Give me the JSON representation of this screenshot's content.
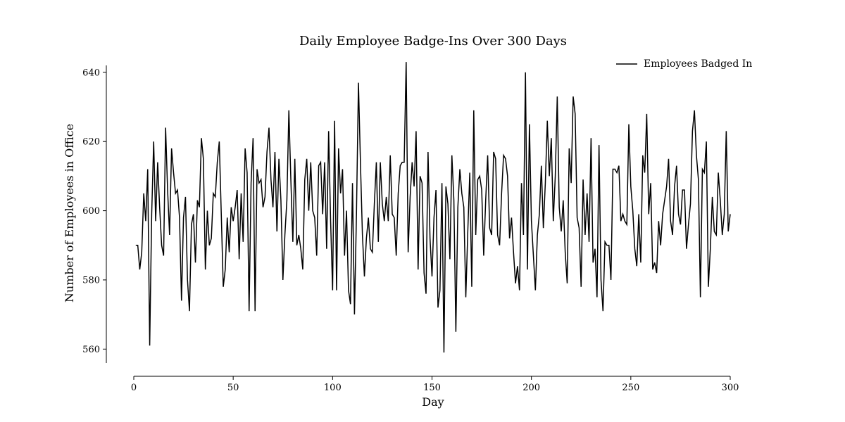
{
  "chart_data": {
    "type": "line",
    "title": "Daily Employee Badge-Ins Over 300 Days",
    "xlabel": "Day",
    "ylabel": "Number of Employees in Office",
    "xlim": [
      0,
      300
    ],
    "ylim": [
      556,
      642
    ],
    "xticks": [
      0,
      50,
      100,
      150,
      200,
      250,
      300
    ],
    "yticks": [
      560,
      580,
      600,
      620,
      640
    ],
    "grid": false,
    "legend_position": "top-right",
    "colors": {
      "line": "#000000",
      "axis": "#000000",
      "background": "#ffffff"
    },
    "series": [
      {
        "name": "Employees Badged In",
        "x": [
          1,
          2,
          3,
          4,
          5,
          6,
          7,
          8,
          9,
          10,
          11,
          12,
          13,
          14,
          15,
          16,
          17,
          18,
          19,
          20,
          21,
          22,
          23,
          24,
          25,
          26,
          27,
          28,
          29,
          30,
          31,
          32,
          33,
          34,
          35,
          36,
          37,
          38,
          39,
          40,
          41,
          42,
          43,
          44,
          45,
          46,
          47,
          48,
          49,
          50,
          51,
          52,
          53,
          54,
          55,
          56,
          57,
          58,
          59,
          60,
          61,
          62,
          63,
          64,
          65,
          66,
          67,
          68,
          69,
          70,
          71,
          72,
          73,
          74,
          75,
          76,
          77,
          78,
          79,
          80,
          81,
          82,
          83,
          84,
          85,
          86,
          87,
          88,
          89,
          90,
          91,
          92,
          93,
          94,
          95,
          96,
          97,
          98,
          99,
          100,
          101,
          102,
          103,
          104,
          105,
          106,
          107,
          108,
          109,
          110,
          111,
          112,
          113,
          114,
          115,
          116,
          117,
          118,
          119,
          120,
          121,
          122,
          123,
          124,
          125,
          126,
          127,
          128,
          129,
          130,
          131,
          132,
          133,
          134,
          135,
          136,
          137,
          138,
          139,
          140,
          141,
          142,
          143,
          144,
          145,
          146,
          147,
          148,
          149,
          150,
          151,
          152,
          153,
          154,
          155,
          156,
          157,
          158,
          159,
          160,
          161,
          162,
          163,
          164,
          165,
          166,
          167,
          168,
          169,
          170,
          171,
          172,
          173,
          174,
          175,
          176,
          177,
          178,
          179,
          180,
          181,
          182,
          183,
          184,
          185,
          186,
          187,
          188,
          189,
          190,
          191,
          192,
          193,
          194,
          195,
          196,
          197,
          198,
          199,
          200,
          201,
          202,
          203,
          204,
          205,
          206,
          207,
          208,
          209,
          210,
          211,
          212,
          213,
          214,
          215,
          216,
          217,
          218,
          219,
          220,
          221,
          222,
          223,
          224,
          225,
          226,
          227,
          228,
          229,
          230,
          231,
          232,
          233,
          234,
          235,
          236,
          237,
          238,
          239,
          240,
          241,
          242,
          243,
          244,
          245,
          246,
          247,
          248,
          249,
          250,
          251,
          252,
          253,
          254,
          255,
          256,
          257,
          258,
          259,
          260,
          261,
          262,
          263,
          264,
          265,
          266,
          267,
          268,
          269,
          270,
          271,
          272,
          273,
          274,
          275,
          276,
          277,
          278,
          279,
          280,
          281,
          282,
          283,
          284,
          285,
          286,
          287,
          288,
          289,
          290,
          291,
          292,
          293,
          294,
          295,
          296,
          297,
          298,
          299,
          300
        ],
        "values": [
          590,
          590,
          583,
          588,
          605,
          597,
          612,
          561,
          599,
          620,
          597,
          614,
          601,
          590,
          587,
          624,
          606,
          593,
          618,
          611,
          605,
          606,
          598,
          574,
          598,
          604,
          580,
          571,
          596,
          599,
          585,
          603,
          601,
          621,
          615,
          583,
          600,
          590,
          592,
          605,
          604,
          614,
          620,
          599,
          578,
          583,
          598,
          588,
          601,
          597,
          601,
          606,
          586,
          605,
          591,
          618,
          611,
          571,
          608,
          621,
          571,
          612,
          608,
          609,
          601,
          604,
          617,
          624,
          609,
          601,
          617,
          594,
          615,
          603,
          580,
          593,
          603,
          629,
          609,
          591,
          615,
          590,
          593,
          589,
          583,
          609,
          615,
          600,
          614,
          600,
          598,
          587,
          613,
          614,
          599,
          614,
          589,
          623,
          597,
          577,
          626,
          577,
          618,
          605,
          612,
          587,
          600,
          577,
          573,
          608,
          570,
          599,
          637,
          614,
          593,
          581,
          592,
          598,
          589,
          588,
          602,
          614,
          591,
          614,
          602,
          597,
          604,
          597,
          616,
          599,
          598,
          587,
          605,
          613,
          614,
          614,
          643,
          588,
          604,
          614,
          607,
          623,
          583,
          610,
          608,
          582,
          576,
          617,
          592,
          581,
          598,
          606,
          572,
          577,
          608,
          559,
          607,
          602,
          586,
          616,
          603,
          565,
          601,
          612,
          605,
          601,
          575,
          594,
          611,
          578,
          629,
          593,
          609,
          610,
          606,
          587,
          603,
          616,
          595,
          593,
          617,
          615,
          593,
          590,
          605,
          616,
          615,
          610,
          592,
          598,
          588,
          579,
          584,
          577,
          608,
          593,
          640,
          583,
          625,
          597,
          587,
          577,
          593,
          599,
          613,
          595,
          608,
          626,
          610,
          621,
          597,
          610,
          633,
          601,
          594,
          603,
          588,
          579,
          618,
          608,
          633,
          628,
          598,
          595,
          578,
          609,
          593,
          605,
          591,
          621,
          585,
          589,
          575,
          619,
          580,
          571,
          591,
          590,
          590,
          580,
          612,
          612,
          611,
          613,
          597,
          599,
          597,
          596,
          625,
          607,
          600,
          589,
          584,
          599,
          585,
          616,
          611,
          628,
          599,
          608,
          583,
          585,
          582,
          597,
          590,
          599,
          603,
          607,
          615,
          597,
          593,
          607,
          613,
          599,
          596,
          606,
          606,
          589,
          596,
          602,
          623,
          629,
          616,
          609,
          575,
          612,
          611,
          620,
          578,
          589,
          604,
          594,
          593,
          611,
          603,
          593,
          599,
          623,
          594,
          599
        ]
      }
    ]
  }
}
